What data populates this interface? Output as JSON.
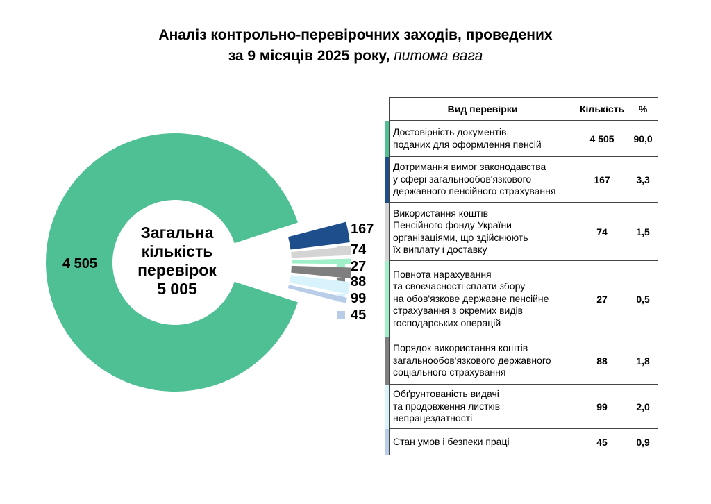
{
  "title": {
    "line1": "Аналіз контрольно-перевірочних заходів, проведених",
    "line2": "за 9 місяців 2025 року,",
    "line2_italic": "питома вага"
  },
  "center": {
    "line1": "Загальна",
    "line2": "кількість",
    "line3": "перевірок",
    "line4": "5 005"
  },
  "table": {
    "headers": [
      "Вид перевірки",
      "Кількість",
      "%"
    ],
    "rows": [
      {
        "name": [
          "Достовірність документів,",
          "поданих для оформлення пенсій"
        ],
        "count": "4 505",
        "pct": "90,0",
        "color": "#4fbf94"
      },
      {
        "name": [
          "Дотримання вимог законодавства",
          "у сфері загальнообов'язкового",
          "державного пенсійного страхування"
        ],
        "count": "167",
        "pct": "3,3",
        "color": "#1f4e8c"
      },
      {
        "name": [
          "Використання коштів",
          "Пенсійного фонду України",
          "організаціями, що здійснюють",
          "їх виплату і доставку"
        ],
        "count": "74",
        "pct": "1,5",
        "color": "#d4d4d4"
      },
      {
        "name": [
          "Повнота нарахування",
          "та своєчасності сплати збору",
          "на обов'язкове державне пенсійне",
          "страхування з окремих видів",
          "господарських операцій"
        ],
        "count": "27",
        "pct": "0,5",
        "color": "#9ff0c8"
      },
      {
        "name": [
          "Порядок використання коштів",
          "загальнообов'язкового державного",
          "соціального страхування"
        ],
        "count": "88",
        "pct": "1,8",
        "color": "#7f7f7f"
      },
      {
        "name": [
          "Обґрунтованість видачі",
          "та продовження листків",
          "непрацездатності"
        ],
        "count": "99",
        "pct": "2,0",
        "color": "#d9f3fc"
      },
      {
        "name": [
          "Стан умов і безпеки праці"
        ],
        "count": "45",
        "pct": "0,9",
        "color": "#b9cde8"
      }
    ]
  },
  "chart_data": {
    "type": "pie",
    "title": "Аналіз контрольно-перевірочних заходів, проведених за 9 місяців 2025 року, питома вага",
    "total": 5005,
    "slices": [
      {
        "label": "4 505",
        "value": 4505,
        "color": "#4fbf94"
      },
      {
        "label": "167",
        "value": 167,
        "color": "#1f4e8c"
      },
      {
        "label": "74",
        "value": 74,
        "color": "#d4d4d4"
      },
      {
        "label": "27",
        "value": 27,
        "color": "#9ff0c8"
      },
      {
        "label": "88",
        "value": 88,
        "color": "#7f7f7f"
      },
      {
        "label": "99",
        "value": 99,
        "color": "#d9f3fc"
      },
      {
        "label": "45",
        "value": 45,
        "color": "#b9cde8"
      }
    ]
  }
}
